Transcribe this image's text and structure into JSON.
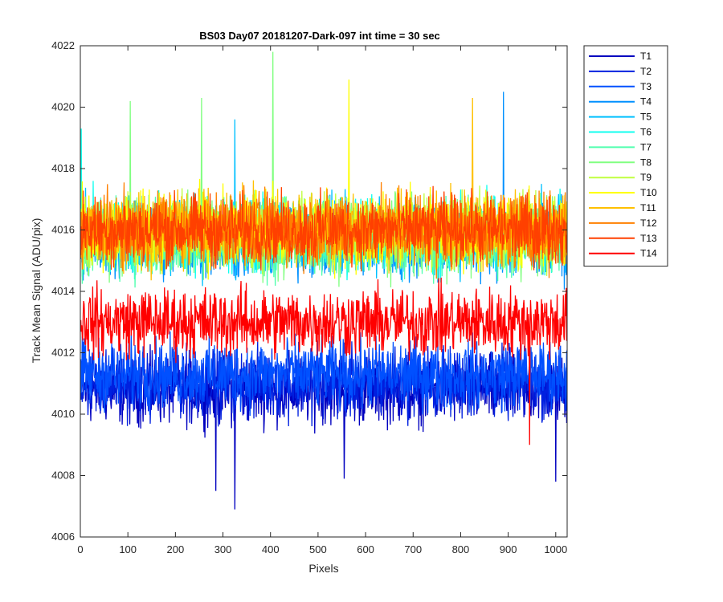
{
  "chart_data": {
    "type": "line",
    "title": "BS03 Day07 20181207-Dark-097 int time = 30 sec",
    "xlabel": "Pixels",
    "ylabel": "Track Mean Signal (ADU/pix)",
    "xlim": [
      0,
      1024
    ],
    "ylim": [
      4006,
      4022
    ],
    "xticks": [
      0,
      100,
      200,
      300,
      400,
      500,
      600,
      700,
      800,
      900,
      1000
    ],
    "yticks": [
      4006,
      4008,
      4010,
      4012,
      4014,
      4016,
      4018,
      4020,
      4022
    ],
    "grid": false,
    "legend_position": "outside-top-right",
    "x_range": [
      1,
      1024
    ],
    "series": [
      {
        "name": "T1",
        "color": "#0000bf",
        "mean_level": 4010.8,
        "noise_amplitude": 1.5,
        "spike_extremes": [
          {
            "x": 285,
            "y": 4007.5
          },
          {
            "x": 325,
            "y": 4006.9
          },
          {
            "x": 555,
            "y": 4007.9
          },
          {
            "x": 1000,
            "y": 4007.8
          }
        ]
      },
      {
        "name": "T2",
        "color": "#0020df",
        "mean_level": 4011.0,
        "noise_amplitude": 1.5,
        "spike_extremes": []
      },
      {
        "name": "T3",
        "color": "#0050ff",
        "mean_level": 4011.3,
        "noise_amplitude": 1.5,
        "spike_extremes": []
      },
      {
        "name": "T4",
        "color": "#0090ff",
        "mean_level": 4015.6,
        "noise_amplitude": 1.6,
        "spike_extremes": [
          {
            "x": 890,
            "y": 4020.5
          }
        ]
      },
      {
        "name": "T5",
        "color": "#00c0ff",
        "mean_level": 4015.8,
        "noise_amplitude": 1.6,
        "spike_extremes": [
          {
            "x": 325,
            "y": 4019.6
          }
        ]
      },
      {
        "name": "T6",
        "color": "#10ffef",
        "mean_level": 4015.9,
        "noise_amplitude": 1.6,
        "spike_extremes": [
          {
            "x": 2,
            "y": 4019.3
          }
        ]
      },
      {
        "name": "T7",
        "color": "#50ffaf",
        "mean_level": 4015.7,
        "noise_amplitude": 1.6,
        "spike_extremes": []
      },
      {
        "name": "T8",
        "color": "#80ff80",
        "mean_level": 4015.8,
        "noise_amplitude": 1.6,
        "spike_extremes": [
          {
            "x": 405,
            "y": 4021.8
          },
          {
            "x": 105,
            "y": 4020.2
          },
          {
            "x": 255,
            "y": 4020.3
          }
        ]
      },
      {
        "name": "T9",
        "color": "#c0ff40",
        "mean_level": 4016.0,
        "noise_amplitude": 1.6,
        "spike_extremes": []
      },
      {
        "name": "T10",
        "color": "#ffff00",
        "mean_level": 4016.0,
        "noise_amplitude": 1.6,
        "spike_extremes": [
          {
            "x": 565,
            "y": 4020.9
          }
        ]
      },
      {
        "name": "T11",
        "color": "#ffc000",
        "mean_level": 4016.0,
        "noise_amplitude": 1.6,
        "spike_extremes": [
          {
            "x": 825,
            "y": 4020.3
          }
        ]
      },
      {
        "name": "T12",
        "color": "#ff8000",
        "mean_level": 4016.0,
        "noise_amplitude": 1.6,
        "spike_extremes": []
      },
      {
        "name": "T13",
        "color": "#ff4000",
        "mean_level": 4016.0,
        "noise_amplitude": 1.5,
        "spike_extremes": []
      },
      {
        "name": "T14",
        "color": "#ff0000",
        "mean_level": 4013.0,
        "noise_amplitude": 1.5,
        "spike_extremes": [
          {
            "x": 945,
            "y": 4009.0
          }
        ]
      }
    ]
  }
}
